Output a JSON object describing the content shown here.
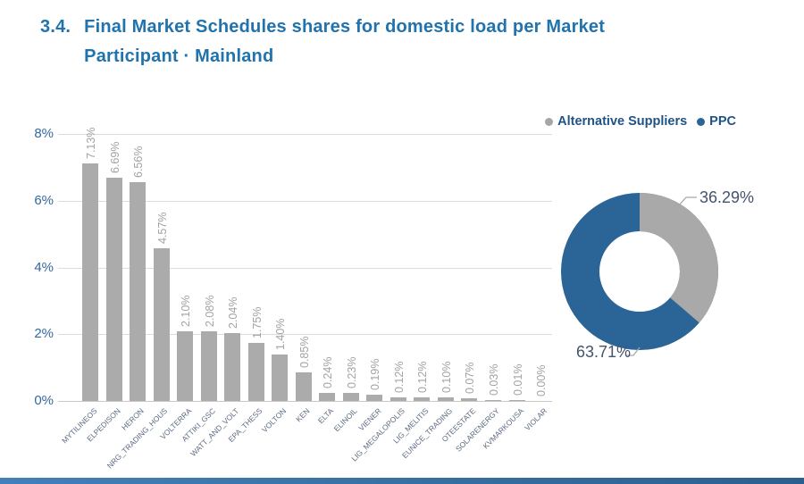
{
  "page": {
    "section_number": "3.4.",
    "title_line1": "Final Market Schedules shares for domestic load per Market",
    "title_line2": "Participant · Mainland"
  },
  "legend": {
    "items": [
      {
        "label": "Alternative Suppliers",
        "color": "#A6A6A6"
      },
      {
        "label": "PPC",
        "color": "#2B6496"
      }
    ]
  },
  "colors": {
    "title_blue": "#2173AE",
    "bar_gray": "#ABABAB",
    "donut_blue": "#2B6496",
    "donut_gray": "#A9A9A9",
    "axis_label_blue": "#35689E",
    "value_label_gray": "#A3A3A3"
  },
  "chart_data": [
    {
      "type": "bar",
      "title": "Final Market Schedules shares for domestic load per Market Participant - Mainland",
      "categories": [
        "MYTILINEOS",
        "ELPEDISON",
        "HERON",
        "NRG_TRADING_HOUS",
        "VOLTERRA",
        "ATTIKI_GSC",
        "WATT_AND_VOLT",
        "EPA_THESS",
        "VOLTON",
        "KEN",
        "ELTA",
        "ELINOIL",
        "VIENER",
        "LIG_MEGALOPOLIS",
        "LIG_MELITIS",
        "EUNICE_TRADING",
        "OTEESTATE",
        "SOLARENERGY",
        "KVMARKOUSA",
        "VIOLAR"
      ],
      "values": [
        7.13,
        6.69,
        6.56,
        4.57,
        2.1,
        2.08,
        2.04,
        1.75,
        1.4,
        0.85,
        0.24,
        0.23,
        0.19,
        0.12,
        0.12,
        0.1,
        0.07,
        0.03,
        0.01,
        0.0
      ],
      "value_labels": [
        "7.13%",
        "6.69%",
        "6.56%",
        "4.57%",
        "2.10%",
        "2.08%",
        "2.04%",
        "1.75%",
        "1.40%",
        "0.85%",
        "0.24%",
        "0.23%",
        "0.19%",
        "0.12%",
        "0.12%",
        "0.10%",
        "0.07%",
        "0.03%",
        "0.01%",
        "0.00%"
      ],
      "xlabel": "",
      "ylabel": "",
      "y_ticks": [
        "0%",
        "2%",
        "4%",
        "6%",
        "8%"
      ],
      "ylim": [
        0,
        8
      ],
      "grid": true,
      "bar_color": "#ABABAB"
    },
    {
      "type": "pie",
      "donut": true,
      "legend_position": "top-right",
      "slices": [
        {
          "label": "Alternative Suppliers",
          "value": 36.29,
          "display": "36.29%",
          "color": "#A9A9A9"
        },
        {
          "label": "PPC",
          "value": 63.71,
          "display": "63.71%",
          "color": "#2B6496"
        }
      ]
    }
  ]
}
